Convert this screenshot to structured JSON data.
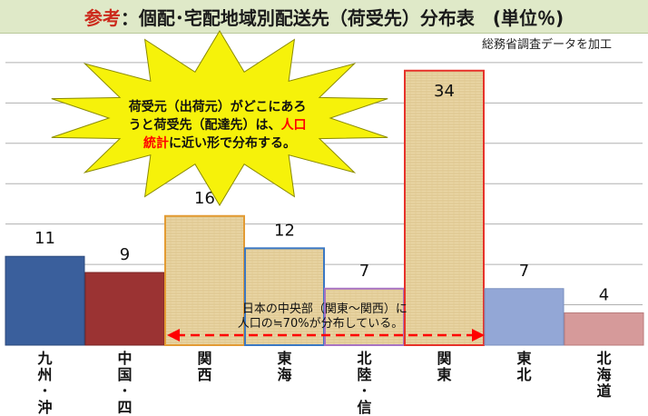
{
  "title": {
    "lead": "参考",
    "rest": "：個配･宅配地域別配送先（荷受先）分布表　(単位％)"
  },
  "source_note": "総務省調査データを加工",
  "callout": {
    "text_part1": "荷受元（出荷元）がどこにあろうと荷受先（配達先）は、",
    "text_highlight": "人口統計",
    "text_part2": "に近い形で分布する。"
  },
  "annotation": "日本の中央部（関東～関西）に人口の≒70%が分布している。",
  "colors": {
    "highlight": "#ff0000",
    "arrow": "#ff0000",
    "title_band": "#dfe9c8",
    "grid": "#b0b0b0"
  },
  "chart_data": {
    "type": "bar",
    "categories": [
      "九州･沖縄",
      "中国･四国",
      "関西",
      "東海",
      "北陸･信越",
      "関東",
      "東北",
      "北海道"
    ],
    "values": [
      11,
      9,
      16,
      12,
      7,
      34,
      7,
      4
    ],
    "title": "個配･宅配地域別配送先（荷受先）分布表",
    "unit": "％",
    "ylim": [
      0,
      36
    ],
    "grid": true,
    "bar_colors": [
      "#3a5f9c",
      "#9b3333",
      "#e8d7a8",
      "#e8d7a8",
      "#e8d7a8",
      "#e8d7a8",
      "#93a7d6",
      "#d69a9a"
    ],
    "bar_outlines": [
      "#2c4a7c",
      "#7a2525",
      "#e39b34",
      "#3b78c3",
      "#a873c2",
      "#e6322a",
      "#7a8fbf",
      "#b97b7b"
    ],
    "textured": [
      false,
      false,
      true,
      true,
      true,
      true,
      false,
      false
    ]
  }
}
